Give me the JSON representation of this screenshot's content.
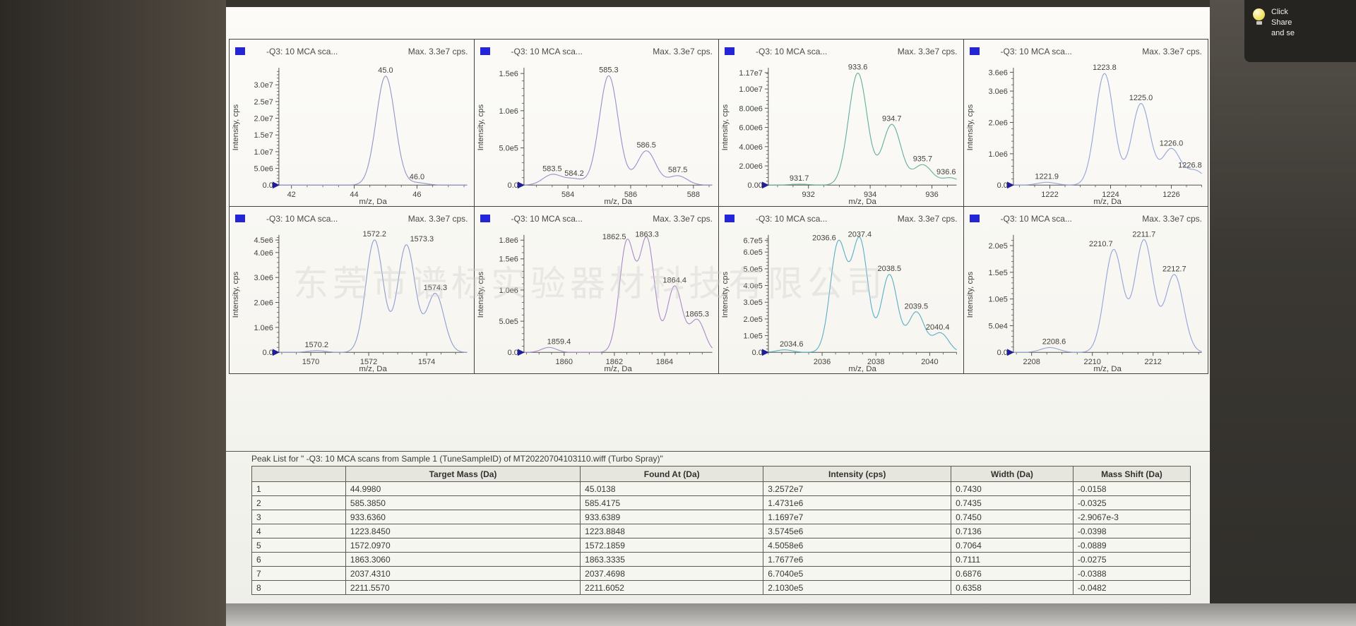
{
  "watermark": "东莞市谱标实验器材科技有限公司",
  "notification": {
    "lines": [
      "Click",
      "Share",
      "and se"
    ]
  },
  "chart_data": [
    {
      "type": "line",
      "title": "-Q3: 10 MCA sca...",
      "max_label": "Max. 3.3e7 cps.",
      "xlabel": "m/z, Da",
      "ylabel": "Intensity, cps",
      "xlim": [
        41.6,
        47.6
      ],
      "xticks": [
        42,
        44,
        46
      ],
      "ylim": [
        0,
        34500000.0
      ],
      "yticks": [
        {
          "value": 0,
          "label": "0.0"
        },
        {
          "value": 5000000.0,
          "label": "5.0e6"
        },
        {
          "value": 10000000.0,
          "label": "1.0e7"
        },
        {
          "value": 15000000.0,
          "label": "1.5e7"
        },
        {
          "value": 20000000.0,
          "label": "2.0e7"
        },
        {
          "value": 25000000.0,
          "label": "2.5e7"
        },
        {
          "value": 30000000.0,
          "label": "3.0e7"
        }
      ],
      "peaks": [
        {
          "mz": 45.0,
          "intensity": 32600000.0,
          "label": "45.0"
        },
        {
          "mz": 46.0,
          "intensity": 700000.0,
          "label": "46.0"
        }
      ],
      "line_color": "#9095c8"
    },
    {
      "type": "line",
      "title": "-Q3: 10 MCA sca...",
      "max_label": "Max. 3.3e7 cps.",
      "xlabel": "m/z, Da",
      "ylabel": "Intensity, cps",
      "xlim": [
        582.6,
        588.6
      ],
      "xticks": [
        584,
        586,
        588
      ],
      "ylim": [
        0,
        1550000.0
      ],
      "yticks": [
        {
          "value": 0,
          "label": "0.0"
        },
        {
          "value": 500000.0,
          "label": "5.0e5"
        },
        {
          "value": 1000000.0,
          "label": "1.0e6"
        },
        {
          "value": 1500000.0,
          "label": "1.5e6"
        }
      ],
      "peaks": [
        {
          "mz": 583.5,
          "intensity": 140000.0,
          "label": "583.5"
        },
        {
          "mz": 584.2,
          "intensity": 80000.0,
          "label": "584.2"
        },
        {
          "mz": 585.3,
          "intensity": 1470000.0,
          "label": "585.3"
        },
        {
          "mz": 586.5,
          "intensity": 460000.0,
          "label": "586.5"
        },
        {
          "mz": 587.5,
          "intensity": 125000.0,
          "label": "587.5"
        }
      ],
      "line_color": "#9a8cd0"
    },
    {
      "type": "line",
      "title": "-Q3: 10 MCA sca...",
      "max_label": "Max. 3.3e7 cps.",
      "xlabel": "m/z, Da",
      "ylabel": "Intensity, cps",
      "xlim": [
        930.7,
        936.8
      ],
      "xticks": [
        932,
        934,
        936
      ],
      "ylim": [
        0,
        12000000.0
      ],
      "yticks": [
        {
          "value": 0,
          "label": "0.00"
        },
        {
          "value": 2000000.0,
          "label": "2.00e6"
        },
        {
          "value": 4000000.0,
          "label": "4.00e6"
        },
        {
          "value": 6000000.0,
          "label": "6.00e6"
        },
        {
          "value": 8000000.0,
          "label": "8.00e6"
        },
        {
          "value": 10000000.0,
          "label": "1.00e7"
        },
        {
          "value": 11700000.0,
          "label": "1.17e7"
        }
      ],
      "peaks": [
        {
          "mz": 931.7,
          "intensity": 100000.0,
          "label": "931.7"
        },
        {
          "mz": 933.6,
          "intensity": 11650000.0,
          "label": "933.6"
        },
        {
          "mz": 934.7,
          "intensity": 6300000.0,
          "label": "934.7"
        },
        {
          "mz": 935.7,
          "intensity": 2100000.0,
          "label": "935.7"
        },
        {
          "mz": 936.6,
          "intensity": 750000.0,
          "label": "936.6",
          "dx": -6
        }
      ],
      "line_color": "#5fae9e"
    },
    {
      "type": "line",
      "title": "-Q3: 10 MCA sca...",
      "max_label": "Max. 3.3e7 cps.",
      "xlabel": "m/z, Da",
      "ylabel": "Intensity, cps",
      "xlim": [
        1220.8,
        1227.0
      ],
      "xticks": [
        1222,
        1224,
        1226
      ],
      "ylim": [
        0,
        3680000.0
      ],
      "yticks": [
        {
          "value": 0,
          "label": "0.0"
        },
        {
          "value": 1000000.0,
          "label": "1.0e6"
        },
        {
          "value": 2000000.0,
          "label": "2.0e6"
        },
        {
          "value": 3000000.0,
          "label": "3.0e6"
        },
        {
          "value": 3600000.0,
          "label": "3.6e6"
        }
      ],
      "peaks": [
        {
          "mz": 1221.9,
          "intensity": 90000.0,
          "label": "1221.9"
        },
        {
          "mz": 1223.8,
          "intensity": 3560000.0,
          "label": "1223.8"
        },
        {
          "mz": 1225.0,
          "intensity": 2600000.0,
          "label": "1225.0"
        },
        {
          "mz": 1226.0,
          "intensity": 1150000.0,
          "label": "1226.0"
        },
        {
          "mz": 1226.8,
          "intensity": 450000.0,
          "label": "1226.8",
          "dx": -8
        }
      ],
      "line_color": "#93a3da"
    },
    {
      "type": "line",
      "title": "-Q3: 10 MCA sca...",
      "max_label": "Max. 3.3e7 cps.",
      "xlabel": "m/z, Da",
      "ylabel": "Intensity, cps",
      "xlim": [
        1568.9,
        1575.4
      ],
      "xticks": [
        1570,
        1572,
        1574
      ],
      "ylim": [
        0,
        4620000.0
      ],
      "yticks": [
        {
          "value": 0,
          "label": "0.0"
        },
        {
          "value": 1000000.0,
          "label": "1.0e6"
        },
        {
          "value": 2000000.0,
          "label": "2.0e6"
        },
        {
          "value": 3000000.0,
          "label": "3.0e6"
        },
        {
          "value": 4000000.0,
          "label": "4.0e6"
        },
        {
          "value": 4500000.0,
          "label": "4.5e6"
        }
      ],
      "peaks": [
        {
          "mz": 1570.2,
          "intensity": 70000.0,
          "label": "1570.2"
        },
        {
          "mz": 1572.2,
          "intensity": 4500000.0,
          "label": "1572.2"
        },
        {
          "mz": 1573.3,
          "intensity": 4300000.0,
          "label": "1573.3",
          "dx": 22
        },
        {
          "mz": 1574.3,
          "intensity": 2350000.0,
          "label": "1574.3"
        }
      ],
      "line_color": "#8e9ccf"
    },
    {
      "type": "line",
      "title": "-Q3: 10 MCA sca...",
      "max_label": "Max. 3.3e7 cps.",
      "xlabel": "m/z, Da",
      "ylabel": "Intensity, cps",
      "xlim": [
        1858.4,
        1865.9
      ],
      "xticks": [
        1860,
        1862,
        1864
      ],
      "ylim": [
        0,
        1850000.0
      ],
      "yticks": [
        {
          "value": 0,
          "label": "0.0"
        },
        {
          "value": 500000.0,
          "label": "5.0e5"
        },
        {
          "value": 1000000.0,
          "label": "1.0e6"
        },
        {
          "value": 1500000.0,
          "label": "1.5e6"
        },
        {
          "value": 1800000.0,
          "label": "1.8e6"
        }
      ],
      "peaks": [
        {
          "mz": 1859.4,
          "intensity": 80000.0,
          "label": "1859.4",
          "dx": 14
        },
        {
          "mz": 1862.5,
          "intensity": 1760000.0,
          "label": "1862.5",
          "dx": -18
        },
        {
          "mz": 1863.3,
          "intensity": 1800000.0,
          "label": "1863.3"
        },
        {
          "mz": 1864.4,
          "intensity": 1060000.0,
          "label": "1864.4"
        },
        {
          "mz": 1865.3,
          "intensity": 520000.0,
          "label": "1865.3"
        }
      ],
      "line_color": "#a889c9"
    },
    {
      "type": "line",
      "title": "-Q3: 10 MCA sca...",
      "max_label": "Max. 3.3e7 cps.",
      "xlabel": "m/z, Da",
      "ylabel": "Intensity, cps",
      "xlim": [
        2034.0,
        2041.0
      ],
      "xticks": [
        2036,
        2038,
        2040
      ],
      "ylim": [
        0,
        690000.0
      ],
      "yticks": [
        {
          "value": 0,
          "label": "0.0"
        },
        {
          "value": 100000.0,
          "label": "1.0e5"
        },
        {
          "value": 200000.0,
          "label": "2.0e5"
        },
        {
          "value": 300000.0,
          "label": "3.0e5"
        },
        {
          "value": 400000.0,
          "label": "4.0e5"
        },
        {
          "value": 500000.0,
          "label": "5.0e5"
        },
        {
          "value": 600000.0,
          "label": "6.0e5"
        },
        {
          "value": 670000.0,
          "label": "6.7e5"
        }
      ],
      "peaks": [
        {
          "mz": 2034.6,
          "intensity": 15000.0,
          "label": "2034.6",
          "dx": 10
        },
        {
          "mz": 2036.6,
          "intensity": 650000.0,
          "label": "2036.6",
          "dx": -20
        },
        {
          "mz": 2037.4,
          "intensity": 670000.0,
          "label": "2037.4"
        },
        {
          "mz": 2038.5,
          "intensity": 465000.0,
          "label": "2038.5"
        },
        {
          "mz": 2039.5,
          "intensity": 240000.0,
          "label": "2039.5"
        },
        {
          "mz": 2040.4,
          "intensity": 115000.0,
          "label": "2040.4",
          "dx": -4
        }
      ],
      "line_color": "#58aec6"
    },
    {
      "type": "line",
      "title": "-Q3: 10 MCA sca...",
      "max_label": "Max. 3.3e7 cps.",
      "xlabel": "m/z, Da",
      "ylabel": "Intensity, cps",
      "xlim": [
        2207.4,
        2213.6
      ],
      "xticks": [
        2208,
        2210,
        2212
      ],
      "ylim": [
        0,
        216000.0
      ],
      "yticks": [
        {
          "value": 0,
          "label": "0.0"
        },
        {
          "value": 50000.0,
          "label": "5.0e4"
        },
        {
          "value": 100000.0,
          "label": "1.0e5"
        },
        {
          "value": 150000.0,
          "label": "1.5e5"
        },
        {
          "value": 200000.0,
          "label": "2.0e5"
        }
      ],
      "peaks": [
        {
          "mz": 2208.6,
          "intensity": 9000.0,
          "label": "2208.6",
          "dx": 6
        },
        {
          "mz": 2210.7,
          "intensity": 192000.0,
          "label": "2210.7",
          "dx": -18
        },
        {
          "mz": 2211.7,
          "intensity": 210000.0,
          "label": "2211.7"
        },
        {
          "mz": 2212.7,
          "intensity": 145000.0,
          "label": "2212.7"
        }
      ],
      "line_color": "#93a3da"
    }
  ],
  "peak_table": {
    "title": "Peak List for \" -Q3: 10 MCA scans from Sample 1 (TuneSampleID) of MT20220704103110.wiff (Turbo Spray)\"",
    "columns": [
      "",
      "Target Mass (Da)",
      "Found At (Da)",
      "Intensity (cps)",
      "Width (Da)",
      "Mass Shift (Da)"
    ],
    "col_widths_pct": [
      10,
      25,
      19.5,
      20,
      13,
      12.5
    ],
    "rows": [
      [
        "1",
        "44.9980",
        "45.0138",
        "3.2572e7",
        "0.7430",
        "-0.0158"
      ],
      [
        "2",
        "585.3850",
        "585.4175",
        "1.4731e6",
        "0.7435",
        "-0.0325"
      ],
      [
        "3",
        "933.6360",
        "933.6389",
        "1.1697e7",
        "0.7450",
        "-2.9067e-3"
      ],
      [
        "4",
        "1223.8450",
        "1223.8848",
        "3.5745e6",
        "0.7136",
        "-0.0398"
      ],
      [
        "5",
        "1572.0970",
        "1572.1859",
        "4.5058e6",
        "0.7064",
        "-0.0889"
      ],
      [
        "6",
        "1863.3060",
        "1863.3335",
        "1.7677e6",
        "0.7111",
        "-0.0275"
      ],
      [
        "7",
        "2037.4310",
        "2037.4698",
        "6.7040e5",
        "0.6876",
        "-0.0388"
      ],
      [
        "8",
        "2211.5570",
        "2211.6052",
        "2.1030e5",
        "0.6358",
        "-0.0482"
      ]
    ]
  }
}
